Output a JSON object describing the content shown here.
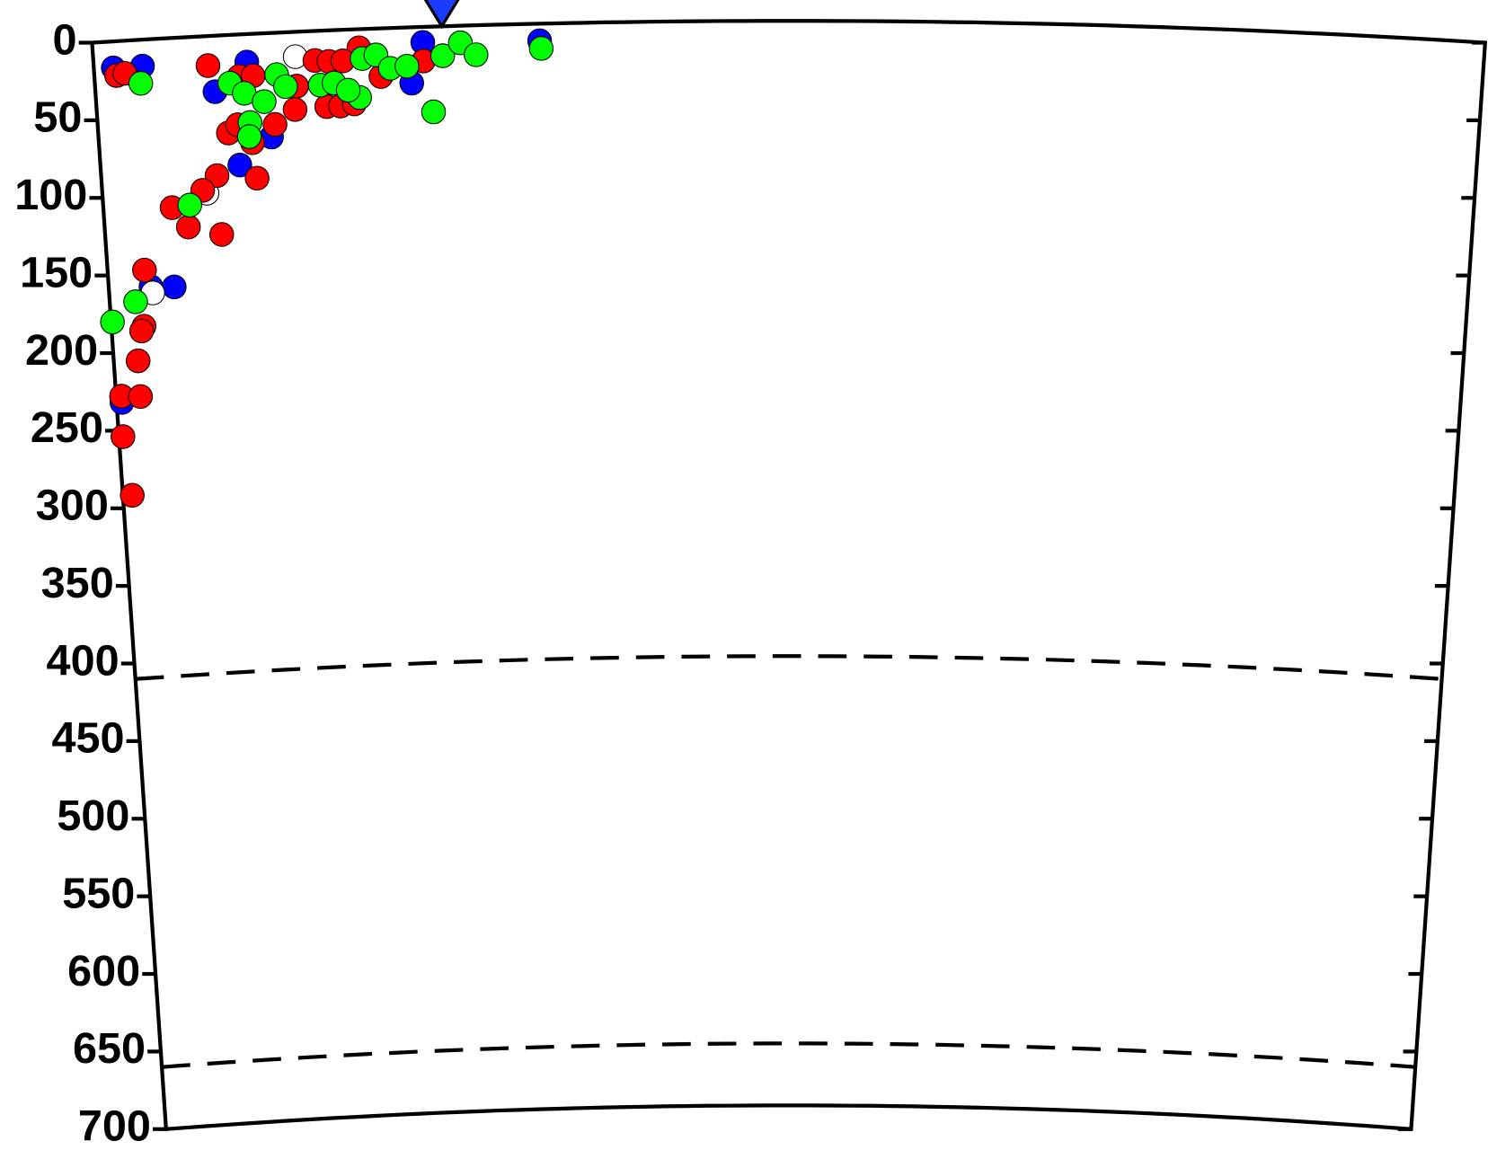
{
  "chart_data": {
    "type": "scatter",
    "xlim": [
      0,
      100
    ],
    "ylim": [
      0,
      700
    ],
    "yticks": [
      0,
      50,
      100,
      150,
      200,
      250,
      300,
      350,
      400,
      450,
      500,
      550,
      600,
      650,
      700
    ],
    "reference_lines": [
      410,
      660
    ],
    "station": {
      "x": 24.9,
      "color": "#1a3cff"
    },
    "series": [
      {
        "color": "#0000ff",
        "x": [
          1.4,
          3.5,
          8.6,
          11,
          10.1,
          12.5,
          22.8,
          23.7,
          32.1,
          3.1,
          4.8,
          0.4
        ],
        "values": [
          17,
          17,
          36,
          18,
          84,
          67,
          36,
          10,
          11,
          159,
          160,
          232
        ]
      },
      {
        "color": "#ffffff",
        "x": [
          14.5,
          3.2,
          7.6
        ],
        "values": [
          16,
          163,
          101
        ]
      },
      {
        "color": "#ff0000",
        "x": [
          1.6,
          2.2,
          8.2,
          19.1,
          15.9,
          16.9,
          17.9,
          16.6,
          17.6,
          18.6,
          9.4,
          10.1,
          11.1,
          12.8,
          14.3,
          11.3,
          8.4,
          7.3,
          5.0,
          6.1,
          8.5,
          2.7,
          2.4,
          2.2,
          1.8,
          0.4,
          1.8,
          0.3,
          0.7,
          10.4,
          11.4,
          20.6,
          23.7,
          14.5
        ],
        "values": [
          22,
          21,
          19,
          12,
          19,
          20,
          20,
          49,
          49,
          48,
          63,
          58,
          70,
          59,
          50,
          93,
          90,
          99,
          109,
          122,
          128,
          148,
          184,
          187,
          206,
          228,
          229,
          254,
          292,
          27,
          27,
          31,
          22,
          35
        ]
      },
      {
        "color": "#00ff00",
        "x": [
          3.3,
          9.7,
          10.7,
          11.0,
          10.9,
          13.1,
          13.7,
          12.1,
          6.3,
          1.9,
          0.1,
          16.2,
          17.2,
          19.0,
          18.2,
          19.3,
          20.3,
          21.3,
          22.5,
          24.3,
          25.1,
          26.4,
          27.5,
          32.2
        ],
        "values": [
          28,
          31,
          38,
          57,
          66,
          27,
          35,
          44,
          108,
          168,
          180,
          35,
          34,
          44,
          39,
          19,
          17,
          26,
          25,
          55,
          19,
          11,
          19,
          16
        ]
      }
    ]
  }
}
